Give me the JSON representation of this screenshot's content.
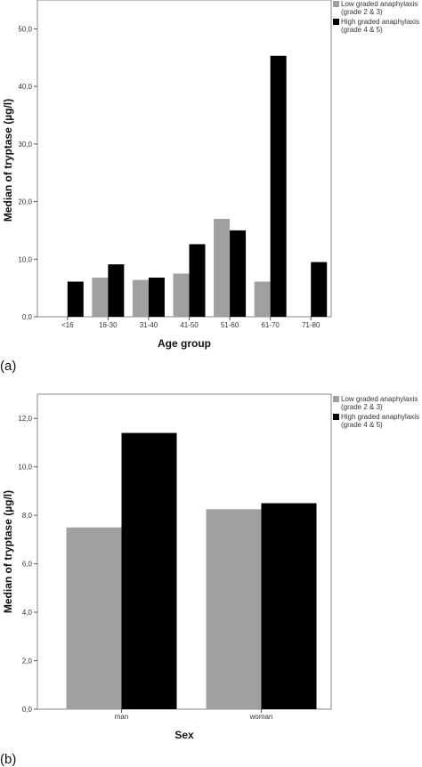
{
  "chart_data": [
    {
      "type": "bar",
      "panel_label": "(a)",
      "title": "",
      "xlabel": "Age group",
      "ylabel": "Median of tryptase (µg/l)",
      "categories": [
        "<16",
        "16-30",
        "31-40",
        "41-50",
        "51-60",
        "61-70",
        "71-80"
      ],
      "ylim": [
        0,
        55
      ],
      "yticks": [
        "0,0",
        "10,0",
        "20,0",
        "30,0",
        "40,0",
        "50,0"
      ],
      "ytick_values": [
        0,
        10,
        20,
        30,
        40,
        50
      ],
      "grid": false,
      "legend_position": "right",
      "series": [
        {
          "name": "Low graded anaphylaxis (grade 2 & 3)",
          "legend_lines": [
            "Low graded anaphylaxis",
            "(grade 2 & 3)"
          ],
          "color": "#a0a0a0",
          "values": [
            null,
            6.8,
            6.4,
            7.5,
            17.0,
            6.1,
            null
          ]
        },
        {
          "name": "High graded anaphylaxis (grade 4 & 5)",
          "legend_lines": [
            "High graded anaphylaxis",
            "(grade 4 & 5)"
          ],
          "color": "#000000",
          "values": [
            6.1,
            9.1,
            6.8,
            12.6,
            15.0,
            45.3,
            9.5
          ]
        }
      ]
    },
    {
      "type": "bar",
      "panel_label": "(b)",
      "title": "",
      "xlabel": "Sex",
      "ylabel": "Median of tryptase (µg/l)",
      "categories": [
        "man",
        "woman"
      ],
      "ylim": [
        0,
        13
      ],
      "yticks": [
        "0,0",
        "2,0",
        "4,0",
        "6,0",
        "8,0",
        "10,0",
        "12,0"
      ],
      "ytick_values": [
        0,
        2,
        4,
        6,
        8,
        10,
        12
      ],
      "grid": false,
      "legend_position": "right",
      "series": [
        {
          "name": "Low graded anaphylaxis (grade 2 & 3)",
          "legend_lines": [
            "Low graded anaphylaxis",
            "(grade 2 & 3)"
          ],
          "color": "#a0a0a0",
          "values": [
            7.5,
            8.25
          ]
        },
        {
          "name": "High graded anaphylaxis (grade 4 & 5)",
          "legend_lines": [
            "High graded anaphylaxis",
            "(grade 4 & 5)"
          ],
          "color": "#000000",
          "values": [
            11.4,
            8.5
          ]
        }
      ]
    }
  ]
}
